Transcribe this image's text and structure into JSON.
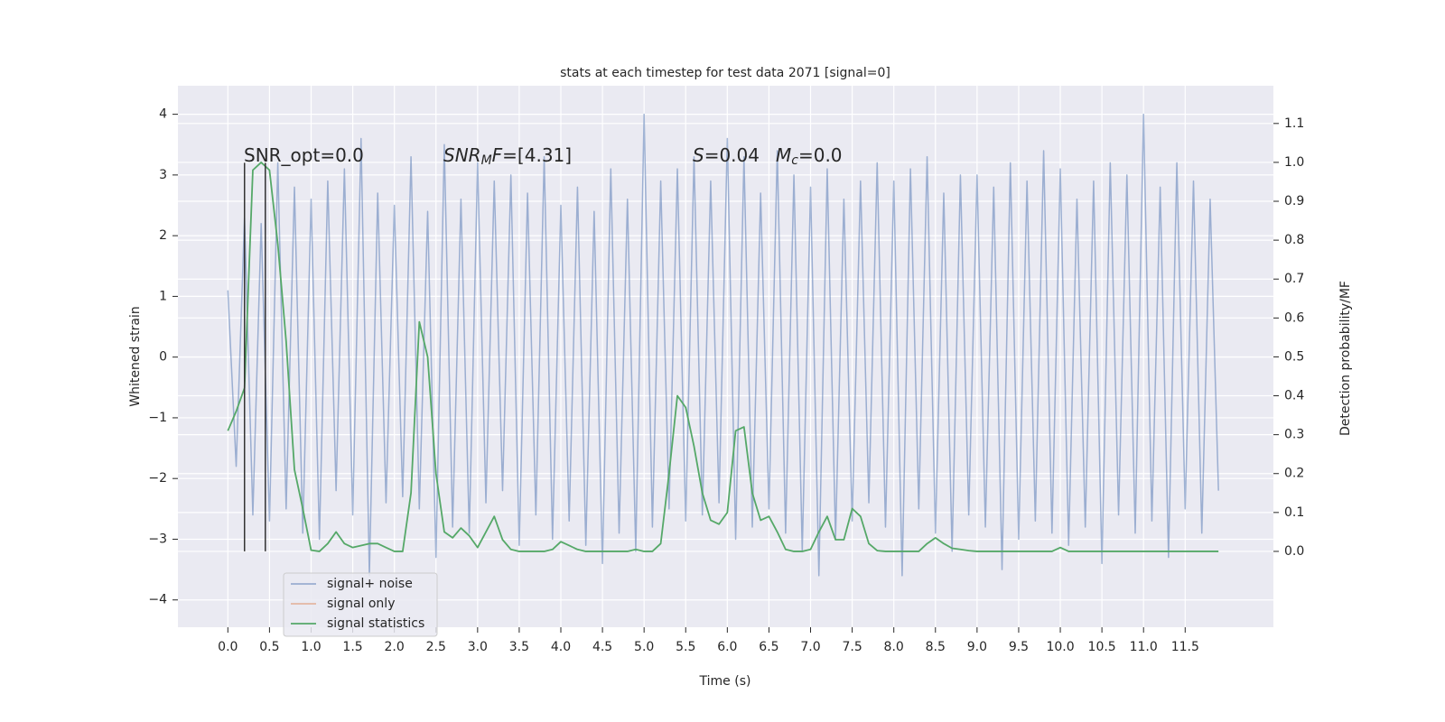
{
  "chart_data": {
    "type": "line",
    "title": "stats at each timestep for test data 2071 [signal=0]",
    "xlabel": "Time (s)",
    "ylabel": "Whitened strain",
    "y2label": "Detection probability/MF",
    "x": [
      0.0,
      0.1,
      0.2,
      0.3,
      0.4,
      0.5,
      0.6,
      0.7,
      0.8,
      0.9,
      1.0,
      1.1,
      1.2,
      1.3,
      1.4,
      1.5,
      1.6,
      1.7,
      1.8,
      1.9,
      2.0,
      2.1,
      2.2,
      2.3,
      2.4,
      2.5,
      2.6,
      2.7,
      2.8,
      2.9,
      3.0,
      3.1,
      3.2,
      3.3,
      3.4,
      3.5,
      3.6,
      3.7,
      3.8,
      3.9,
      4.0,
      4.1,
      4.2,
      4.3,
      4.4,
      4.5,
      4.6,
      4.7,
      4.8,
      4.9,
      5.0,
      5.1,
      5.2,
      5.3,
      5.4,
      5.5,
      5.6,
      5.7,
      5.8,
      5.9,
      6.0,
      6.1,
      6.2,
      6.3,
      6.4,
      6.5,
      6.6,
      6.7,
      6.8,
      6.9,
      7.0,
      7.1,
      7.2,
      7.3,
      7.4,
      7.5,
      7.6,
      7.7,
      7.8,
      7.9,
      8.0,
      8.1,
      8.2,
      8.3,
      8.4,
      8.5,
      8.6,
      8.7,
      8.8,
      8.9,
      9.0,
      9.1,
      9.2,
      9.3,
      9.4,
      9.5,
      9.6,
      9.7,
      9.8,
      9.9,
      10.0,
      10.1,
      10.2,
      10.3,
      10.4,
      10.5,
      10.6,
      10.7,
      10.8,
      10.9,
      11.0,
      11.1,
      11.2,
      11.3,
      11.4,
      11.5,
      11.6,
      11.7,
      11.8,
      11.9
    ],
    "series": [
      {
        "name": "signal+ noise",
        "color": "#4c72b0",
        "opacity": 0.5,
        "axis": "y",
        "values": [
          1.1,
          -1.8,
          2.3,
          -2.6,
          2.2,
          -2.7,
          3.2,
          -2.5,
          2.8,
          -2.9,
          2.6,
          -3.0,
          2.9,
          -2.2,
          3.1,
          -2.6,
          3.6,
          -3.6,
          2.7,
          -2.4,
          2.5,
          -2.3,
          3.3,
          -2.5,
          2.4,
          -3.3,
          3.5,
          -2.8,
          2.6,
          -2.9,
          3.2,
          -2.4,
          2.9,
          -2.2,
          3.0,
          -3.1,
          2.7,
          -2.6,
          3.3,
          -3.0,
          2.5,
          -2.7,
          2.8,
          -3.1,
          2.4,
          -3.4,
          3.1,
          -2.9,
          2.6,
          -3.2,
          4.0,
          -2.8,
          2.9,
          -2.5,
          3.1,
          -2.7,
          3.3,
          -2.6,
          2.9,
          -2.4,
          3.6,
          -3.0,
          3.3,
          -2.8,
          2.7,
          -2.5,
          3.4,
          -2.9,
          3.0,
          -3.2,
          2.8,
          -3.6,
          3.1,
          -3.0,
          2.6,
          -2.7,
          2.9,
          -2.4,
          3.2,
          -2.8,
          2.9,
          -3.6,
          3.1,
          -2.5,
          3.3,
          -2.9,
          2.7,
          -3.2,
          3.0,
          -2.6,
          3.0,
          -2.8,
          2.8,
          -3.5,
          3.2,
          -3.0,
          2.9,
          -2.7,
          3.4,
          -2.9,
          3.1,
          -3.1,
          2.6,
          -2.8,
          2.9,
          -3.4,
          3.2,
          -2.6,
          3.0,
          -2.9,
          4.0,
          -2.7,
          2.8,
          -3.3,
          3.2,
          -2.5,
          2.9,
          -2.9,
          2.6,
          -2.2
        ]
      },
      {
        "name": "signal only",
        "color": "#dd8452",
        "opacity": 0.5,
        "axis": "y",
        "values": [
          null,
          null,
          null,
          null,
          null,
          null,
          null,
          null,
          null,
          null,
          null,
          null,
          null,
          null,
          null,
          null,
          null,
          null,
          null,
          null,
          null,
          null,
          null,
          null,
          null,
          null,
          null,
          null,
          null,
          null,
          null,
          null,
          null,
          null,
          null,
          null,
          null,
          null,
          null,
          null,
          null,
          null,
          null,
          null,
          null,
          null,
          null,
          null,
          null,
          null,
          null,
          null,
          null,
          null,
          null,
          null,
          null,
          null,
          null,
          null,
          null,
          null,
          null,
          null,
          null,
          null,
          null,
          null,
          null,
          null,
          null,
          null,
          null,
          null,
          null,
          null,
          null,
          null,
          null,
          null,
          null,
          null,
          null,
          null,
          null,
          null,
          null,
          null,
          null,
          null,
          null,
          null,
          null,
          null,
          null,
          null,
          null,
          null,
          null,
          null,
          null,
          null,
          null,
          null,
          null,
          null,
          null,
          null,
          null,
          null,
          null,
          null,
          null,
          null,
          null,
          null,
          null,
          null,
          null,
          null
        ]
      },
      {
        "name": "signal statistics",
        "color": "#55a868",
        "opacity": 1,
        "axis": "y2",
        "values": [
          0.31,
          0.36,
          0.42,
          0.98,
          1.0,
          0.98,
          0.79,
          0.54,
          0.21,
          0.11,
          0.003,
          0.0,
          0.02,
          0.05,
          0.02,
          0.01,
          0.015,
          0.02,
          0.02,
          0.01,
          0.0,
          0.0,
          0.15,
          0.59,
          0.5,
          0.2,
          0.05,
          0.035,
          0.06,
          0.04,
          0.01,
          0.05,
          0.09,
          0.03,
          0.005,
          0.0,
          0.0,
          0.0,
          0.0,
          0.005,
          0.025,
          0.015,
          0.005,
          0.0,
          0.0,
          0.0,
          0.0,
          0.0,
          0.0,
          0.005,
          0.0,
          0.0,
          0.02,
          0.2,
          0.4,
          0.37,
          0.27,
          0.15,
          0.08,
          0.07,
          0.1,
          0.31,
          0.32,
          0.15,
          0.08,
          0.09,
          0.05,
          0.005,
          0.0,
          0.0,
          0.005,
          0.05,
          0.09,
          0.03,
          0.03,
          0.11,
          0.09,
          0.02,
          0.002,
          0.0,
          0.0,
          0.0,
          0.0,
          0.0,
          0.02,
          0.035,
          0.02,
          0.008,
          0.005,
          0.002,
          0.0,
          0.0,
          0.0,
          0.0,
          0.0,
          0.0,
          0.0,
          0.0,
          0.0,
          0.0,
          0.01,
          0.0,
          0.0,
          0.0,
          0.0,
          0.0,
          0.0,
          0.0,
          0.0,
          0.0,
          0.0,
          0.0,
          0.0,
          0.0,
          0.0,
          0.0,
          0.0,
          0.0,
          0.0,
          0.0
        ]
      }
    ],
    "vlines": [
      0.2,
      0.45
    ],
    "vline_range": [
      -3.2,
      3.2
    ],
    "vline_color": "#333333",
    "annotations": [
      [
        {
          "text": "SNR_opt=0.0"
        }
      ],
      [
        {
          "text": "SNR",
          "italic": true
        },
        {
          "text": "M",
          "italic": true,
          "sub": true
        },
        {
          "text": "F",
          "italic": true
        },
        {
          "text": "=[4.31]"
        }
      ],
      [
        {
          "text": "S",
          "italic": true
        },
        {
          "text": "=0.04"
        }
      ],
      [
        {
          "text": "M",
          "italic": true
        },
        {
          "text": "c",
          "italic": true,
          "sub": true
        },
        {
          "text": "=0.0"
        }
      ]
    ],
    "xlim": [
      -0.6,
      12.56
    ],
    "ylim": [
      -4.45,
      4.47
    ],
    "y2lim": [
      -0.195,
      1.197
    ],
    "xticks": [
      {
        "value": 0.0,
        "label": "0.0"
      },
      {
        "value": 0.5,
        "label": "0.5"
      },
      {
        "value": 1.0,
        "label": "1.0"
      },
      {
        "value": 1.5,
        "label": "1.5"
      },
      {
        "value": 2.0,
        "label": "2.0"
      },
      {
        "value": 2.5,
        "label": "2.5"
      },
      {
        "value": 3.0,
        "label": "3.0"
      },
      {
        "value": 3.5,
        "label": "3.5"
      },
      {
        "value": 4.0,
        "label": "4.0"
      },
      {
        "value": 4.5,
        "label": "4.5"
      },
      {
        "value": 5.0,
        "label": "5.0"
      },
      {
        "value": 5.5,
        "label": "5.5"
      },
      {
        "value": 6.0,
        "label": "6.0"
      },
      {
        "value": 6.5,
        "label": "6.5"
      },
      {
        "value": 7.0,
        "label": "7.0"
      },
      {
        "value": 7.5,
        "label": "7.5"
      },
      {
        "value": 8.0,
        "label": "8.0"
      },
      {
        "value": 8.5,
        "label": "8.5"
      },
      {
        "value": 9.0,
        "label": "9.0"
      },
      {
        "value": 9.5,
        "label": "9.5"
      },
      {
        "value": 10.0,
        "label": "10.0"
      },
      {
        "value": 10.5,
        "label": "10.5"
      },
      {
        "value": 11.0,
        "label": "11.0"
      },
      {
        "value": 11.5,
        "label": "11.5"
      }
    ],
    "yticks": [
      {
        "value": -4,
        "label": "−4"
      },
      {
        "value": -3,
        "label": "−3"
      },
      {
        "value": -2,
        "label": "−2"
      },
      {
        "value": -1,
        "label": "−1"
      },
      0,
      1,
      2,
      3,
      4
    ],
    "y2ticks": [
      {
        "value": 0.0,
        "label": "0.0"
      },
      {
        "value": 0.1,
        "label": "0.1"
      },
      {
        "value": 0.2,
        "label": "0.2"
      },
      {
        "value": 0.3,
        "label": "0.3"
      },
      {
        "value": 0.4,
        "label": "0.4"
      },
      {
        "value": 0.5,
        "label": "0.5"
      },
      {
        "value": 0.6,
        "label": "0.6"
      },
      {
        "value": 0.7,
        "label": "0.7"
      },
      {
        "value": 0.8,
        "label": "0.8"
      },
      {
        "value": 0.9,
        "label": "0.9"
      },
      {
        "value": 1.0,
        "label": "1.0"
      },
      {
        "value": 1.1,
        "label": "1.1"
      }
    ],
    "grid": true,
    "background": "#eaeaf2",
    "legend": "lower left"
  }
}
